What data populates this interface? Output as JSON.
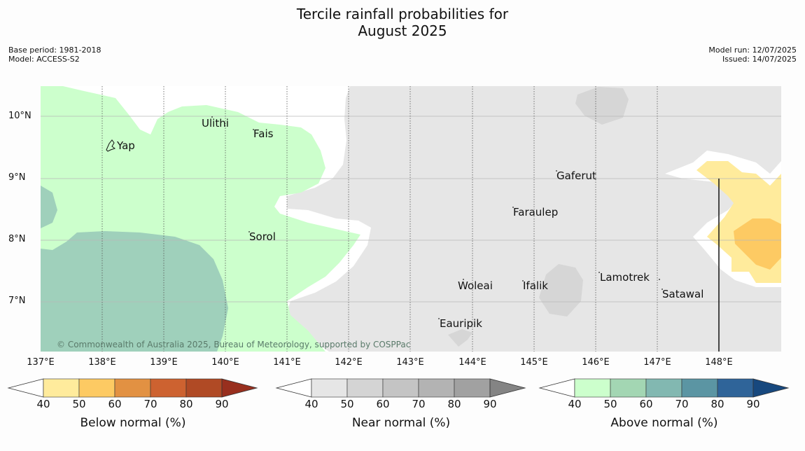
{
  "header": {
    "title_line1": "Tercile rainfall probabilities for",
    "title_line2": "August 2025",
    "base_period": "Base period: 1981-2018",
    "model": "Model: ACCESS-S2",
    "model_run": "Model run: 12/07/2025",
    "issued": "Issued: 14/07/2025"
  },
  "axes": {
    "y_ticks": [
      "10°N",
      "9°N",
      "8°N",
      "7°N"
    ],
    "x_ticks": [
      "137°E",
      "138°E",
      "139°E",
      "140°E",
      "141°E",
      "142°E",
      "143°E",
      "144°E",
      "145°E",
      "146°E",
      "147°E",
      "148°E"
    ]
  },
  "places": [
    {
      "name": "Ulithi"
    },
    {
      "name": "Fais"
    },
    {
      "name": "Yap"
    },
    {
      "name": "Gaferut"
    },
    {
      "name": "Faraulep"
    },
    {
      "name": "Sorol"
    },
    {
      "name": "Woleai"
    },
    {
      "name": "Ifalik"
    },
    {
      "name": "Lamotrek"
    },
    {
      "name": "Satawal"
    },
    {
      "name": "Eauripik"
    }
  ],
  "copyright": "© Commonwealth of Australia 2025, Bureau of Meteorology, supported by COSPPac",
  "legends": [
    {
      "title": "Below normal (%)",
      "ticks": [
        "40",
        "50",
        "60",
        "70",
        "80",
        "90"
      ],
      "colors": [
        "#ffeb9c",
        "#fdca63",
        "#e29142",
        "#cd6230",
        "#b04a25",
        "#982f1e"
      ]
    },
    {
      "title": "Near normal (%)",
      "ticks": [
        "40",
        "50",
        "60",
        "70",
        "80",
        "90"
      ],
      "colors": [
        "#e6e6e6",
        "#d4d4d4",
        "#c4c4c4",
        "#b3b3b3",
        "#a1a1a1",
        "#848484"
      ]
    },
    {
      "title": "Above normal (%)",
      "ticks": [
        "40",
        "50",
        "60",
        "70",
        "80",
        "90"
      ],
      "colors": [
        "#ccffcc",
        "#a3d6b3",
        "#82b8b1",
        "#5b95a3",
        "#2f6499",
        "#17487e"
      ]
    }
  ],
  "colors": {
    "green_40": "#ccffcc",
    "green_50": "#9fd0bb",
    "grey_40": "#e6e6e6",
    "grey_50": "#d6d6d6",
    "yellow_40": "#ffeb9c",
    "orange_50": "#fdca63"
  }
}
